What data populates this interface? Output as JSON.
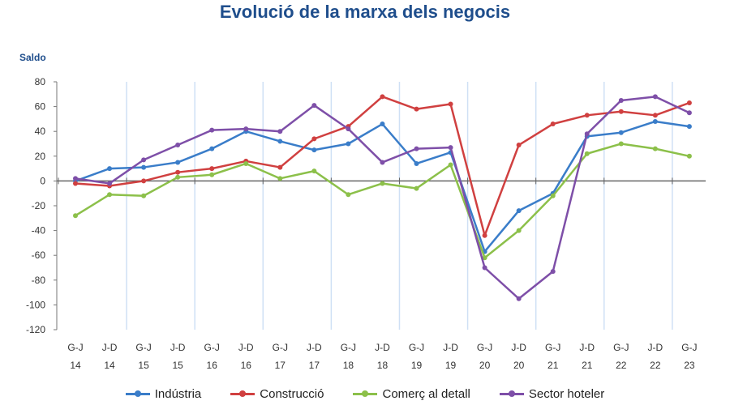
{
  "chart_data": {
    "type": "line",
    "title": "Evolució de la marxa dels negocis",
    "ylabel": "Saldo",
    "xlabel": "",
    "ylim": [
      -120,
      80
    ],
    "yticks": [
      80,
      60,
      40,
      20,
      0,
      -20,
      -40,
      -60,
      -80,
      -100,
      -120
    ],
    "categories": [
      [
        "G-J",
        "14"
      ],
      [
        "J-D",
        "14"
      ],
      [
        "G-J",
        "15"
      ],
      [
        "J-D",
        "15"
      ],
      [
        "G-J",
        "16"
      ],
      [
        "J-D",
        "16"
      ],
      [
        "G-J",
        "17"
      ],
      [
        "J-D",
        "17"
      ],
      [
        "G-J",
        "18"
      ],
      [
        "J-D",
        "18"
      ],
      [
        "G-J",
        "19"
      ],
      [
        "J-D",
        "19"
      ],
      [
        "G-J",
        "20"
      ],
      [
        "J-D",
        "20"
      ],
      [
        "G-J",
        "21"
      ],
      [
        "J-D",
        "21"
      ],
      [
        "G-J",
        "22"
      ],
      [
        "J-D",
        "22"
      ],
      [
        "G-J",
        "23"
      ]
    ],
    "legend_position": "bottom",
    "series": [
      {
        "name": "Indústria",
        "color": "#3A7DC9",
        "values": [
          0,
          10,
          11,
          15,
          26,
          40,
          32,
          25,
          30,
          46,
          14,
          23,
          -57,
          -24,
          -10,
          36,
          39,
          48,
          44
        ]
      },
      {
        "name": "Construcció",
        "color": "#D04040",
        "values": [
          -2,
          -4,
          0,
          7,
          10,
          16,
          11,
          34,
          44,
          68,
          58,
          62,
          -44,
          29,
          46,
          53,
          56,
          53,
          63
        ]
      },
      {
        "name": "Comerç al detall",
        "color": "#8CC04A",
        "values": [
          -28,
          -11,
          -12,
          3,
          5,
          14,
          2,
          8,
          -11,
          -2,
          -6,
          13,
          -62,
          -40,
          -12,
          22,
          30,
          26,
          20
        ]
      },
      {
        "name": "Sector hoteler",
        "color": "#7E4FA8",
        "values": [
          2,
          -2,
          17,
          29,
          41,
          42,
          40,
          61,
          42,
          15,
          26,
          27,
          -70,
          -95,
          -73,
          38,
          65,
          68,
          55
        ]
      }
    ]
  }
}
